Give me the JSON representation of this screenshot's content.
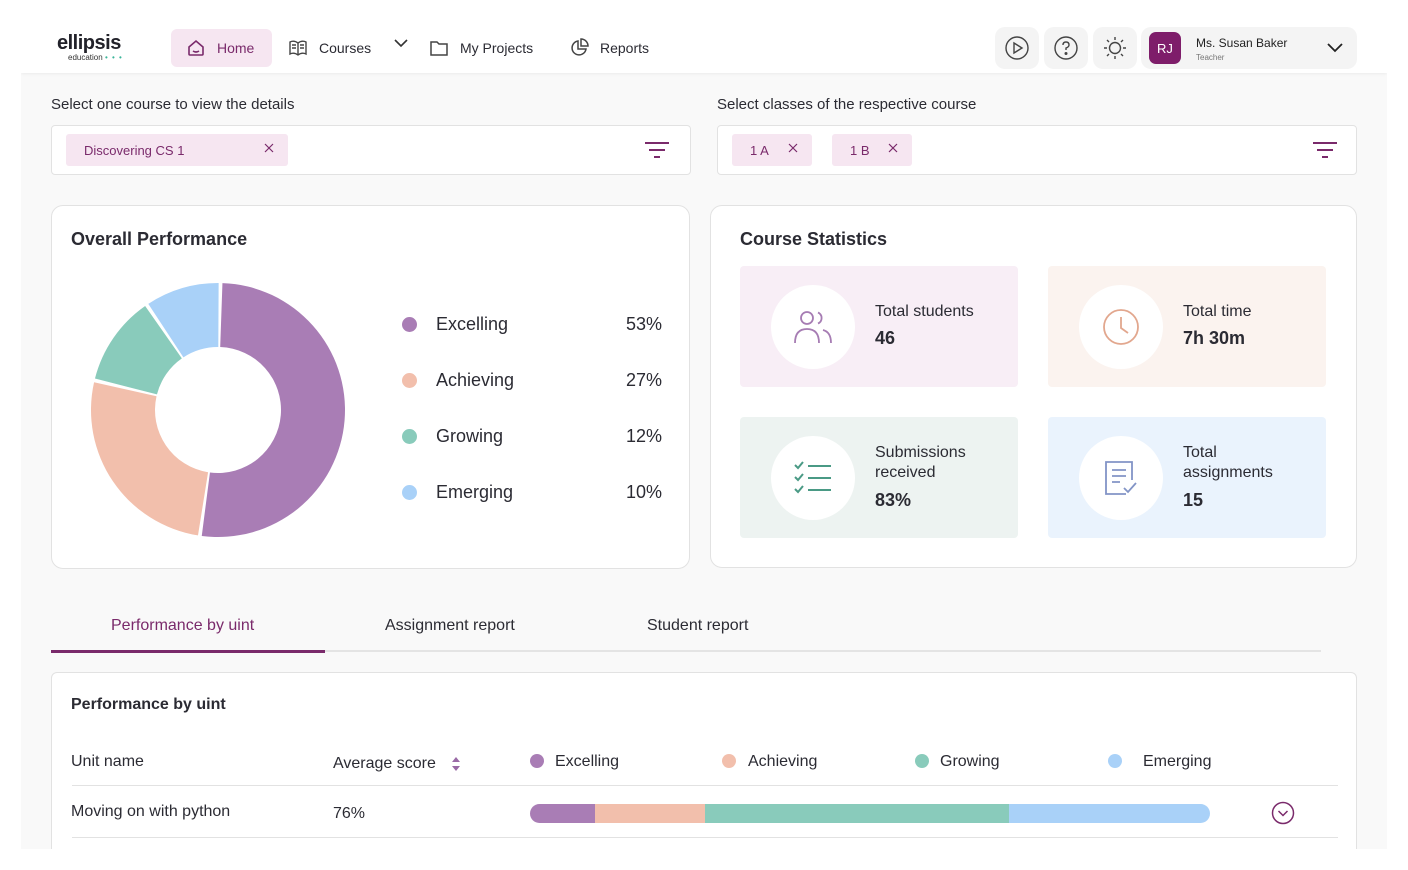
{
  "brand": {
    "name": "ellipsis",
    "sub": "education",
    "dots": "• • •"
  },
  "nav": {
    "home": "Home",
    "courses": "Courses",
    "projects": "My Projects",
    "reports": "Reports",
    "icons": [
      "home-icon",
      "book-icon",
      "chevron-down-icon",
      "folder-icon",
      "pie-chart-icon"
    ]
  },
  "user": {
    "initials": "RJ",
    "name": "Ms. Susan Baker",
    "role": "Teacher"
  },
  "filters": {
    "course_label": "Select one course to view the details",
    "course_chip": "Discovering CS 1",
    "class_label": "Select classes of the respective course",
    "class_chips": [
      "1 A",
      "1 B"
    ]
  },
  "overall": {
    "title": "Overall Performance",
    "legend": [
      {
        "label": "Excelling",
        "pct": "53%"
      },
      {
        "label": "Achieving",
        "pct": "27%"
      },
      {
        "label": "Growing",
        "pct": "12%"
      },
      {
        "label": "Emerging",
        "pct": "10%"
      }
    ]
  },
  "chart_data": {
    "type": "pie",
    "title": "Overall Performance",
    "categories": [
      "Excelling",
      "Achieving",
      "Growing",
      "Emerging"
    ],
    "values": [
      53,
      27,
      12,
      10
    ],
    "colors": [
      "#a97db5",
      "#f2bfac",
      "#89cbbb",
      "#a9d1f8"
    ]
  },
  "stats": {
    "title": "Course Statistics",
    "students": {
      "label": "Total students",
      "value": "46"
    },
    "time": {
      "label": "Total time",
      "value": "7h 30m"
    },
    "submissions": {
      "label1": "Submissions",
      "label2": "received",
      "value": "83%"
    },
    "assignments": {
      "label1": "Total",
      "label2": "assignments",
      "value": "15"
    }
  },
  "tabs": [
    "Performance by uint",
    "Assignment report",
    "Student report"
  ],
  "table": {
    "title": "Performance by uint",
    "col_unit": "Unit name",
    "col_score": "Average score",
    "legend": [
      "Excelling",
      "Achieving",
      "Growing",
      "Emerging"
    ],
    "rows": [
      {
        "unit": "Moving on with python",
        "score": "76%",
        "segments": [
          9.5,
          16.2,
          44.7,
          29.6
        ]
      }
    ]
  },
  "colors": {
    "accent": "#7a2a6b",
    "excelling": "#a97db5",
    "achieving": "#f2bfac",
    "growing": "#89cbbb",
    "emerging": "#a9d1f8"
  }
}
